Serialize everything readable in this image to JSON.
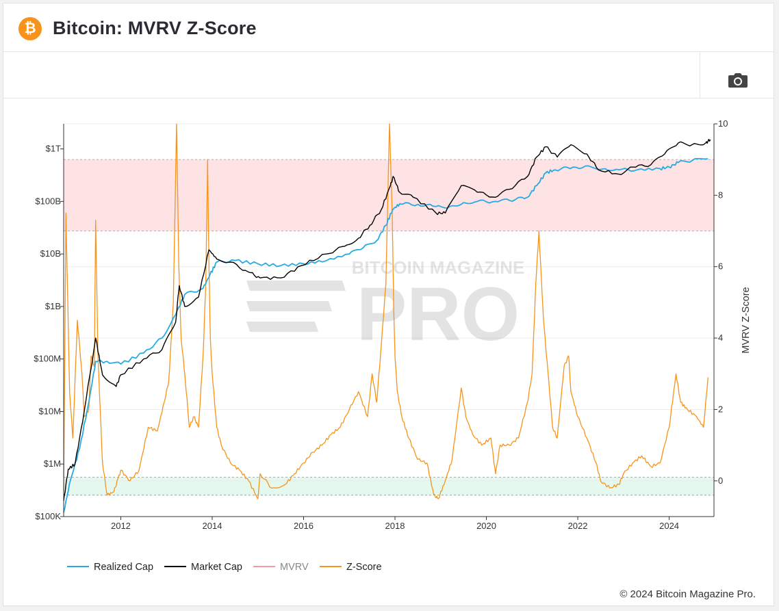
{
  "header": {
    "title": "Bitcoin: MVRV Z-Score",
    "logo_symbol": "₿",
    "logo_color": "#f7931a"
  },
  "toolbar": {
    "icon": "camera-icon"
  },
  "footer": {
    "copyright": "© 2024 Bitcoin Magazine Pro."
  },
  "watermark": {
    "top": "BITCOIN MAGAZINE",
    "main": "PRO"
  },
  "colors": {
    "realized": "#27aae1",
    "market": "#000000",
    "mvrv": "#f39a9a",
    "zscore": "#f7931a",
    "red_band": "#fde3e3",
    "green_band": "#e4f8ee"
  },
  "chart_data": {
    "type": "line",
    "title": "Bitcoin: MVRV Z-Score",
    "x_ticks": [
      "2012",
      "2014",
      "2016",
      "2018",
      "2020",
      "2022",
      "2024"
    ],
    "x_range": [
      2010.75,
      2024.98
    ],
    "y_left": {
      "scale": "log",
      "ticks": [
        "$100K",
        "$1M",
        "$10M",
        "$100M",
        "$1B",
        "$10B",
        "$100B",
        "$1T"
      ],
      "range": [
        100000,
        3000000000000
      ]
    },
    "y_right": {
      "label": "MVRV Z-Score",
      "ticks": [
        "0",
        "2",
        "4",
        "6",
        "8",
        "10"
      ],
      "range": [
        -1,
        10
      ]
    },
    "bands": {
      "red_zscore": [
        7,
        9
      ],
      "green_zscore": [
        -0.4,
        0.1
      ]
    },
    "legend": [
      "Realized Cap",
      "Market Cap",
      "MVRV",
      "Z-Score"
    ],
    "series": [
      {
        "name": "Realized Cap",
        "axis": "left",
        "x": [
          2010.75,
          2010.9,
          2011.1,
          2011.3,
          2011.45,
          2011.7,
          2012.0,
          2012.5,
          2012.9,
          2013.2,
          2013.4,
          2013.8,
          2013.95,
          2014.1,
          2014.5,
          2015.0,
          2015.5,
          2016.0,
          2016.5,
          2017.0,
          2017.3,
          2017.6,
          2017.8,
          2017.95,
          2018.1,
          2018.5,
          2018.9,
          2019.2,
          2019.5,
          2019.8,
          2020.2,
          2020.5,
          2020.9,
          2021.1,
          2021.3,
          2021.5,
          2021.9,
          2022.3,
          2022.6,
          2022.9,
          2023.3,
          2023.8,
          2024.0,
          2024.2,
          2024.5,
          2024.85
        ],
        "values": [
          120000,
          500000,
          2000000,
          15000000,
          90000000,
          90000000,
          80000000,
          130000000,
          250000000,
          700000000,
          1700000000,
          2200000000,
          4000000000,
          7000000000,
          7500000000,
          6500000000,
          6000000000,
          6500000000,
          7500000000,
          10000000000,
          13000000000,
          18000000000,
          35000000000,
          70000000000,
          90000000000,
          88000000000,
          80000000000,
          80000000000,
          95000000000,
          100000000000,
          100000000000,
          105000000000,
          120000000000,
          200000000000,
          350000000000,
          400000000000,
          450000000000,
          450000000000,
          420000000000,
          400000000000,
          400000000000,
          420000000000,
          450000000000,
          550000000000,
          600000000000,
          650000000000
        ]
      },
      {
        "name": "Market Cap",
        "axis": "left",
        "x": [
          2010.75,
          2010.85,
          2011.0,
          2011.2,
          2011.45,
          2011.6,
          2011.9,
          2012.0,
          2012.5,
          2012.9,
          2013.2,
          2013.28,
          2013.4,
          2013.7,
          2013.93,
          2014.1,
          2014.4,
          2014.8,
          2015.05,
          2015.5,
          2015.95,
          2016.5,
          2016.9,
          2017.2,
          2017.45,
          2017.7,
          2017.9,
          2017.96,
          2018.1,
          2018.4,
          2018.9,
          2019.1,
          2019.45,
          2019.8,
          2020.2,
          2020.5,
          2020.9,
          2021.1,
          2021.3,
          2021.55,
          2021.85,
          2022.2,
          2022.45,
          2022.9,
          2023.2,
          2023.6,
          2023.9,
          2024.2,
          2024.5,
          2024.8,
          2024.9
        ],
        "values": [
          200000,
          800000,
          1000000,
          10000000,
          250000000,
          50000000,
          30000000,
          50000000,
          100000000,
          150000000,
          500000000,
          2500000000,
          1000000000,
          1500000000,
          12000000000,
          8000000000,
          7000000000,
          4500000000,
          3500000000,
          3500000000,
          6000000000,
          10000000000,
          14000000000,
          20000000000,
          35000000000,
          70000000000,
          200000000000,
          300000000000,
          150000000000,
          120000000000,
          60000000000,
          60000000000,
          200000000000,
          150000000000,
          120000000000,
          170000000000,
          300000000000,
          700000000000,
          1100000000000,
          700000000000,
          1200000000000,
          800000000000,
          400000000000,
          330000000000,
          450000000000,
          500000000000,
          800000000000,
          1300000000000,
          1200000000000,
          1300000000000,
          1500000000000
        ]
      },
      {
        "name": "MVRV",
        "axis": "left",
        "x": [],
        "values": []
      },
      {
        "name": "Z-Score",
        "axis": "right",
        "x": [
          2010.75,
          2010.8,
          2010.88,
          2010.95,
          2011.05,
          2011.15,
          2011.2,
          2011.3,
          2011.35,
          2011.42,
          2011.45,
          2011.5,
          2011.6,
          2011.7,
          2011.85,
          2011.95,
          2012.0,
          2012.2,
          2012.4,
          2012.6,
          2012.8,
          2012.95,
          2013.05,
          2013.15,
          2013.22,
          2013.27,
          2013.32,
          2013.4,
          2013.5,
          2013.6,
          2013.7,
          2013.8,
          2013.86,
          2013.9,
          2013.93,
          2013.96,
          2014.0,
          2014.1,
          2014.2,
          2014.4,
          2014.6,
          2014.8,
          2015.0,
          2015.05,
          2015.3,
          2015.6,
          2015.8,
          2016.0,
          2016.2,
          2016.4,
          2016.6,
          2016.8,
          2017.0,
          2017.2,
          2017.4,
          2017.5,
          2017.6,
          2017.7,
          2017.8,
          2017.88,
          2017.94,
          2017.97,
          2018.0,
          2018.05,
          2018.15,
          2018.3,
          2018.5,
          2018.7,
          2018.85,
          2018.95,
          2019.1,
          2019.25,
          2019.45,
          2019.55,
          2019.7,
          2019.9,
          2020.1,
          2020.2,
          2020.3,
          2020.5,
          2020.7,
          2020.9,
          2021.0,
          2021.08,
          2021.15,
          2021.25,
          2021.35,
          2021.45,
          2021.55,
          2021.7,
          2021.8,
          2021.85,
          2022.0,
          2022.2,
          2022.4,
          2022.5,
          2022.7,
          2022.9,
          2023.0,
          2023.2,
          2023.4,
          2023.6,
          2023.8,
          2024.0,
          2024.15,
          2024.25,
          2024.4,
          2024.6,
          2024.75,
          2024.85
        ],
        "values": [
          -0.3,
          7.5,
          2.5,
          1.2,
          4.5,
          3.0,
          1.8,
          2.0,
          3.5,
          3.2,
          7.3,
          3.5,
          0.5,
          -0.4,
          -0.3,
          0.1,
          0.3,
          0.0,
          0.3,
          1.5,
          1.4,
          2.2,
          2.8,
          5.0,
          10.0,
          6.0,
          4.0,
          3.0,
          1.5,
          1.8,
          1.5,
          3.5,
          5.5,
          9.0,
          6.0,
          4.0,
          3.0,
          1.5,
          1.0,
          0.5,
          0.3,
          0.0,
          -0.5,
          0.2,
          -0.2,
          -0.1,
          0.2,
          0.5,
          0.8,
          1.0,
          1.3,
          1.5,
          2.0,
          2.5,
          1.8,
          3.0,
          2.2,
          3.8,
          5.5,
          10.0,
          7.5,
          5.0,
          3.5,
          2.5,
          1.8,
          1.2,
          0.6,
          0.5,
          -0.4,
          -0.5,
          0.0,
          0.6,
          2.6,
          1.8,
          1.3,
          1.0,
          1.2,
          0.2,
          1.0,
          1.0,
          1.2,
          2.2,
          3.0,
          5.5,
          7.0,
          4.5,
          3.0,
          1.5,
          1.2,
          3.2,
          3.5,
          2.5,
          1.8,
          1.2,
          0.5,
          0.0,
          -0.2,
          -0.1,
          0.2,
          0.5,
          0.7,
          0.4,
          0.5,
          1.5,
          3.0,
          2.2,
          2.0,
          1.8,
          1.5,
          2.9
        ]
      }
    ]
  }
}
